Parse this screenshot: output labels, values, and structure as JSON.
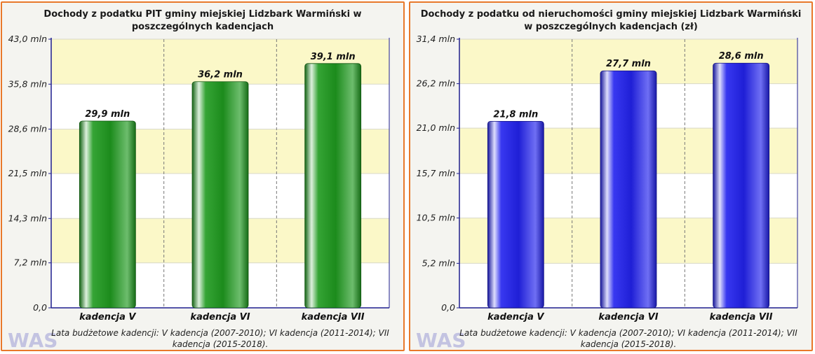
{
  "colors": {
    "panel_border": "#e8782a",
    "band_yellow": "#fbf8c8",
    "band_white": "#ffffff",
    "axis": "#1f1f8f",
    "bar_green": "#1f9a1f",
    "bar_blue": "#2222ee"
  },
  "logo": {
    "text": "WAS",
    "icon": "was-logo-icon"
  },
  "chart_data": [
    {
      "type": "bar",
      "title": "Dochody z podatku PIT gminy miejskiej Lidzbark Warmiński w poszczególnych kadencjach",
      "categories": [
        "kadencja V",
        "kadencja VI",
        "kadencja VII"
      ],
      "values": [
        29.9,
        36.2,
        39.1
      ],
      "value_labels": [
        "29,9 mln",
        "36,2 mln",
        "39,1 mln"
      ],
      "yticks": [
        0,
        7.2,
        14.3,
        21.5,
        28.6,
        35.8,
        43.0
      ],
      "ytick_labels": [
        "0,0",
        "7,2 mln",
        "14,3 mln",
        "21,5 mln",
        "28,6 mln",
        "35,8 mln",
        "43,0 mln"
      ],
      "ylim": [
        0,
        43.0
      ],
      "bar_color": "#1f9a1f",
      "grid": true,
      "footnote": "Lata budżetowe kadencji: V kadencja (2007-2010); VI kadencja (2011-2014); VII kadencja (2015-2018)."
    },
    {
      "type": "bar",
      "title": "Dochody z podatku od nieruchomości gminy miejskiej Lidzbark Warmiński w poszczególnych kadencjach (zł)",
      "categories": [
        "kadencja V",
        "kadencja VI",
        "kadencja VII"
      ],
      "values": [
        21.8,
        27.7,
        28.6
      ],
      "value_labels": [
        "21,8 mln",
        "27,7 mln",
        "28,6 mln"
      ],
      "yticks": [
        0,
        5.2,
        10.5,
        15.7,
        21.0,
        26.2,
        31.4
      ],
      "ytick_labels": [
        "0,0",
        "5,2 mln",
        "10,5 mln",
        "15,7 mln",
        "21,0 mln",
        "26,2 mln",
        "31,4 mln"
      ],
      "ylim": [
        0,
        31.4
      ],
      "bar_color": "#2222ee",
      "grid": true,
      "footnote": "Lata budżetowe kadencji: V kadencja (2007-2010); VI kadencja (2011-2014); VII kadencja (2015-2018)."
    }
  ]
}
